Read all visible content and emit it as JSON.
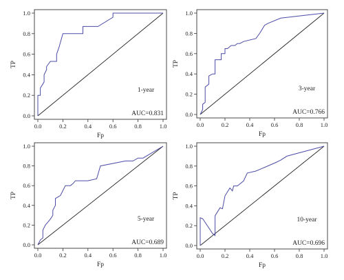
{
  "colors": {
    "roc_line": "#4b4ba6",
    "diagonal": "#222222",
    "frame": "#333333"
  },
  "chart_data": [
    {
      "type": "line",
      "title": "",
      "xlabel": "Fp",
      "ylabel": "TP",
      "xlim": [
        0,
        1
      ],
      "ylim": [
        0,
        1
      ],
      "xticks": [
        "0.0",
        "0.2",
        "0.4",
        "0.6",
        "0.8",
        "1.0"
      ],
      "yticks": [
        "0.0",
        "0.2",
        "0.4",
        "0.6",
        "0.8",
        "1.0"
      ],
      "label": "1-year",
      "auc": "AUC=0.831",
      "grid": false,
      "x": [
        0.0,
        0.0,
        0.02,
        0.02,
        0.05,
        0.05,
        0.07,
        0.07,
        0.1,
        0.15,
        0.15,
        0.17,
        0.2,
        0.36,
        0.36,
        0.48,
        0.6,
        0.6,
        1.0
      ],
      "y": [
        0.0,
        0.2,
        0.2,
        0.27,
        0.33,
        0.4,
        0.45,
        0.48,
        0.53,
        0.53,
        0.6,
        0.67,
        0.8,
        0.8,
        0.87,
        0.87,
        0.96,
        1.0,
        1.0
      ]
    },
    {
      "type": "line",
      "title": "",
      "xlabel": "Fp",
      "ylabel": "TP",
      "xlim": [
        0,
        1
      ],
      "ylim": [
        0,
        1
      ],
      "xticks": [
        "0.0",
        "0.2",
        "0.4",
        "0.6",
        "0.8",
        "1.0"
      ],
      "yticks": [
        "0.0",
        "0.2",
        "0.4",
        "0.6",
        "0.8",
        "1.0"
      ],
      "label": "3-year",
      "auc": "AUC=0.766",
      "grid": false,
      "x": [
        0.0,
        0.02,
        0.02,
        0.04,
        0.04,
        0.07,
        0.07,
        0.1,
        0.12,
        0.12,
        0.17,
        0.17,
        0.2,
        0.2,
        0.22,
        0.25,
        0.28,
        0.3,
        0.32,
        0.35,
        0.45,
        0.48,
        0.52,
        0.55,
        0.65,
        1.0
      ],
      "y": [
        0.0,
        0.05,
        0.1,
        0.12,
        0.27,
        0.3,
        0.38,
        0.4,
        0.4,
        0.54,
        0.54,
        0.6,
        0.6,
        0.65,
        0.65,
        0.68,
        0.68,
        0.7,
        0.7,
        0.72,
        0.75,
        0.8,
        0.88,
        0.9,
        0.95,
        1.0
      ]
    },
    {
      "type": "line",
      "title": "",
      "xlabel": "Fp",
      "ylabel": "TP",
      "xlim": [
        0,
        1
      ],
      "ylim": [
        0,
        1
      ],
      "xticks": [
        "0.0",
        "0.2",
        "0.4",
        "0.6",
        "0.8",
        "1.0"
      ],
      "yticks": [
        "0.0",
        "0.2",
        "0.4",
        "0.6",
        "0.8",
        "1.0"
      ],
      "label": "5-year",
      "auc": "AUC=0.689",
      "grid": false,
      "x": [
        0.0,
        0.02,
        0.04,
        0.04,
        0.06,
        0.08,
        0.1,
        0.12,
        0.12,
        0.14,
        0.14,
        0.18,
        0.2,
        0.22,
        0.26,
        0.28,
        0.3,
        0.4,
        0.47,
        0.5,
        0.7,
        0.76,
        0.8,
        0.84,
        1.0
      ],
      "y": [
        0.0,
        0.05,
        0.07,
        0.15,
        0.2,
        0.23,
        0.26,
        0.3,
        0.35,
        0.4,
        0.47,
        0.5,
        0.55,
        0.6,
        0.6,
        0.62,
        0.65,
        0.65,
        0.67,
        0.8,
        0.85,
        0.85,
        0.88,
        0.88,
        1.0
      ]
    },
    {
      "type": "line",
      "title": "",
      "xlabel": "Fp",
      "ylabel": "TP",
      "xlim": [
        0,
        1
      ],
      "ylim": [
        0,
        1
      ],
      "xticks": [
        "0.0",
        "0.2",
        "0.4",
        "0.6",
        "0.8",
        "1.0"
      ],
      "yticks": [
        "0.0",
        "0.2",
        "0.4",
        "0.6",
        "0.8",
        "1.0"
      ],
      "label": "10-year",
      "auc": "AUC=0.696",
      "grid": false,
      "x": [
        0.0,
        0.0,
        0.02,
        0.1,
        0.12,
        0.12,
        0.16,
        0.18,
        0.2,
        0.24,
        0.26,
        0.27,
        0.3,
        0.35,
        0.38,
        0.45,
        0.6,
        0.65,
        0.7,
        1.0
      ],
      "y": [
        0.0,
        0.28,
        0.27,
        0.12,
        0.1,
        0.3,
        0.38,
        0.37,
        0.5,
        0.58,
        0.55,
        0.6,
        0.6,
        0.65,
        0.73,
        0.75,
        0.83,
        0.86,
        0.9,
        1.0
      ]
    }
  ]
}
